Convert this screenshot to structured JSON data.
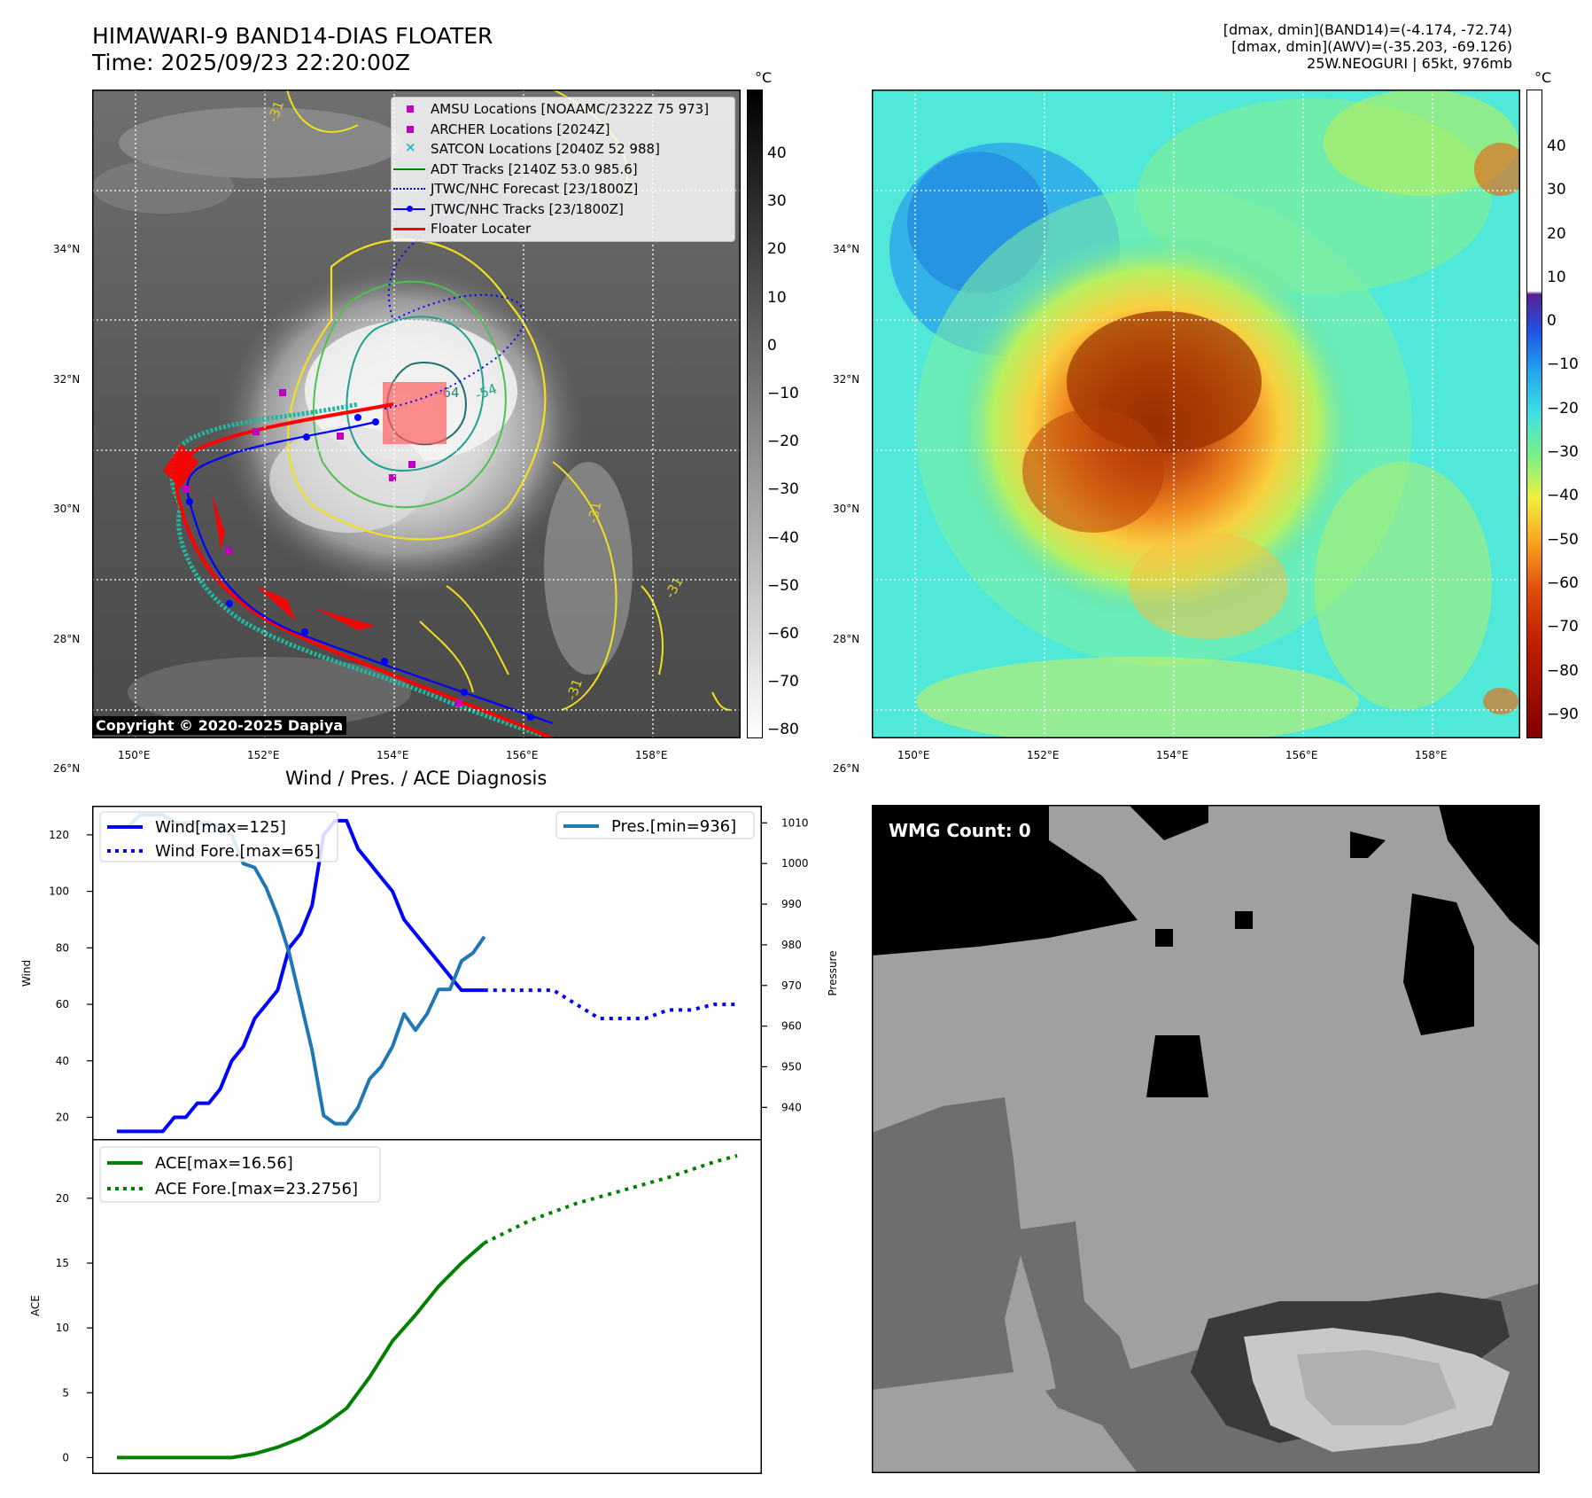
{
  "header": {
    "title_line1": "HIMAWARI-9 BAND14-DIAS FLOATER",
    "title_line2": "Time: 2025/09/23 22:20:00Z",
    "info_line1": "[dmax, dmin](BAND14)=(-4.174, -72.74)",
    "info_line2": "[dmax, dmin](AWV)=(-35.203, -69.126)",
    "info_line3": "25W.NEOGURI | 65kt, 976mb"
  },
  "map_axes": {
    "lon_ticks": [
      "150°E",
      "152°E",
      "154°E",
      "156°E",
      "158°E"
    ],
    "lat_ticks": [
      "34°N",
      "32°N",
      "30°N",
      "28°N",
      "26°N"
    ]
  },
  "ir_panel": {
    "colorbar_unit": "°C",
    "colorbar_ticks": [
      "40",
      "30",
      "20",
      "10",
      "0",
      "−10",
      "−20",
      "−30",
      "−40",
      "−50",
      "−60",
      "−70",
      "−80"
    ],
    "contour_labels": [
      "-31",
      "-64",
      "-54",
      "-31",
      "-31",
      "-31"
    ],
    "copyright": "Copyright © 2020-2025 Dapiya",
    "legend": [
      {
        "label": "AMSU Locations [NOAAMC/2322Z 75 973]",
        "symbol": "square",
        "color": "#c000c0"
      },
      {
        "label": "ARCHER Locations [2024Z]",
        "symbol": "square",
        "color": "#c000c0"
      },
      {
        "label": "SATCON Locations [2040Z 52 988]",
        "symbol": "x",
        "color": "#20b8b8"
      },
      {
        "label": "ADT Tracks [2140Z 53.0 985.6]",
        "symbol": "line",
        "color": "#008000"
      },
      {
        "label": "JTWC/NHC Forecast [23/1800Z]",
        "symbol": "dotted",
        "color": "#0000ff"
      },
      {
        "label": "JTWC/NHC Tracks [23/1800Z]",
        "symbol": "line-dot",
        "color": "#0000ff"
      },
      {
        "label": "Floater Locater",
        "symbol": "line",
        "color": "#ff0000"
      }
    ]
  },
  "awv_panel": {
    "colorbar_unit": "°C",
    "colorbar_ticks": [
      "40",
      "30",
      "20",
      "10",
      "0",
      "−10",
      "−20",
      "−30",
      "−40",
      "−50",
      "−60",
      "−70",
      "−80",
      "−90"
    ]
  },
  "wmg_panel": {
    "label": "WMG Count: 0"
  },
  "diagnosis": {
    "title": "Wind / Pres. / ACE Diagnosis",
    "wind_ylabel": "Wind",
    "pres_ylabel": "Pressure",
    "ace_ylabel": "ACE",
    "legend_wind": "Wind[max=125]",
    "legend_wind_fore": "Wind Fore.[max=65]",
    "legend_pres": "Pres.[min=936]",
    "legend_ace": "ACE[max=16.56]",
    "legend_ace_fore": "ACE Fore.[max=23.2756]",
    "wind_ticks": [
      "120",
      "100",
      "80",
      "60",
      "40",
      "20"
    ],
    "pres_ticks": [
      "1010",
      "1000",
      "990",
      "980",
      "970",
      "960",
      "950",
      "940"
    ],
    "ace_ticks": [
      "20",
      "15",
      "10",
      "5",
      "0"
    ]
  },
  "chart_data": [
    {
      "type": "line",
      "ylabel": "Wind",
      "ylim": [
        12,
        130
      ],
      "xlim": [
        -2,
        56
      ],
      "legend": "top-left",
      "series": [
        {
          "name": "Wind[max=125]",
          "color": "#0000ff",
          "style": "solid",
          "x": [
            0,
            1,
            2,
            3,
            4,
            5,
            6,
            7,
            8,
            9,
            10,
            11,
            12,
            13,
            14,
            15,
            16,
            17,
            18,
            19,
            20,
            21,
            22,
            23,
            24,
            25,
            26,
            27,
            28,
            29,
            30,
            31,
            32
          ],
          "values": [
            15,
            15,
            15,
            15,
            15,
            20,
            20,
            25,
            25,
            30,
            40,
            45,
            55,
            60,
            65,
            80,
            85,
            95,
            120,
            125,
            125,
            115,
            110,
            105,
            100,
            90,
            85,
            80,
            75,
            70,
            65,
            65,
            65
          ]
        },
        {
          "name": "Wind Fore.[max=65]",
          "color": "#0000ff",
          "style": "dotted",
          "x": [
            32,
            36,
            38,
            40,
            42,
            44,
            46,
            48,
            50,
            52,
            54
          ],
          "values": [
            65,
            65,
            65,
            60,
            55,
            55,
            55,
            58,
            58,
            60,
            60
          ]
        }
      ]
    },
    {
      "type": "line",
      "ylabel": "Pressure",
      "ylim": [
        932,
        1014
      ],
      "legend": "top-right",
      "series": [
        {
          "name": "Pres.[min=936]",
          "color": "#1f77b4",
          "style": "solid",
          "x": [
            0,
            1,
            2,
            3,
            4,
            5,
            6,
            7,
            8,
            9,
            10,
            11,
            12,
            13,
            14,
            15,
            16,
            17,
            18,
            19,
            20,
            21,
            22,
            23,
            24,
            25,
            26,
            27,
            28,
            29,
            30,
            31,
            32
          ],
          "values": [
            1009,
            1009,
            1012,
            1012,
            1012,
            1010,
            1010,
            1010,
            1010,
            1009,
            1007,
            1000,
            999,
            994,
            987,
            978,
            966,
            954,
            938,
            936,
            936,
            940,
            947,
            950,
            955,
            963,
            959,
            963,
            969,
            969,
            976,
            978,
            982
          ]
        }
      ]
    },
    {
      "type": "line",
      "ylabel": "ACE",
      "ylim": [
        -1.2,
        24.5
      ],
      "legend": "top-left",
      "series": [
        {
          "name": "ACE[max=16.56]",
          "color": "#008000",
          "style": "solid",
          "x": [
            0,
            2,
            4,
            6,
            8,
            10,
            12,
            14,
            16,
            18,
            20,
            22,
            24,
            26,
            28,
            30,
            32
          ],
          "values": [
            0,
            0,
            0,
            0,
            0,
            0,
            0.3,
            0.8,
            1.5,
            2.5,
            3.8,
            6.2,
            9.0,
            11.0,
            13.2,
            15.0,
            16.56
          ]
        },
        {
          "name": "ACE Fore.[max=23.2756]",
          "color": "#008000",
          "style": "dotted",
          "x": [
            32,
            36,
            40,
            44,
            48,
            52,
            54
          ],
          "values": [
            16.56,
            18.3,
            19.6,
            20.6,
            21.6,
            22.8,
            23.28
          ]
        }
      ]
    }
  ]
}
